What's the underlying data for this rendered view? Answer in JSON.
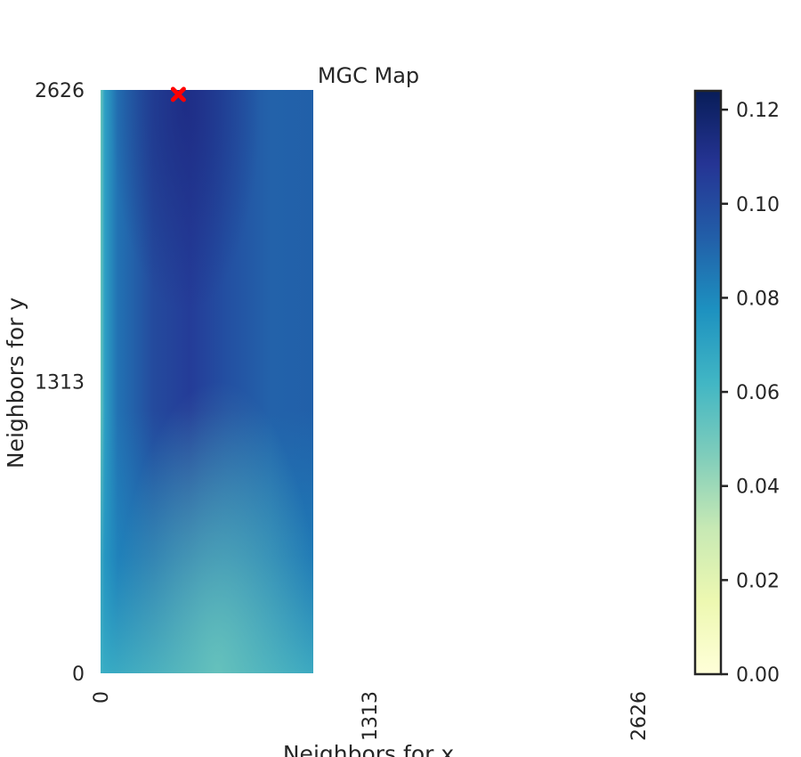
{
  "chart_data": {
    "type": "heatmap",
    "title": "MGC Map",
    "xlabel": "Neighbors for x",
    "ylabel": "Neighbors for y",
    "x_ticks": [
      "0",
      "1313",
      "2626"
    ],
    "y_ticks": [
      "2626",
      "1313",
      "0"
    ],
    "xlim": [
      0,
      2626
    ],
    "ylim": [
      0,
      2626
    ],
    "heatmap_x_extent": [
      0,
      950
    ],
    "colorbar": {
      "range": [
        0.0,
        0.124
      ],
      "ticks": [
        "0.00",
        "0.02",
        "0.04",
        "0.06",
        "0.08",
        "0.10",
        "0.12"
      ],
      "colormap": "YlGnBu",
      "stops": [
        "#ffffd9",
        "#edf8b1",
        "#c7e9b4",
        "#7fcdbb",
        "#41b6c4",
        "#1d91c0",
        "#225ea8",
        "#253494",
        "#081d58"
      ]
    },
    "optimal_marker": {
      "x": 380,
      "y": 2626,
      "color": "#ff0000"
    },
    "grid": false,
    "legend": "none"
  }
}
